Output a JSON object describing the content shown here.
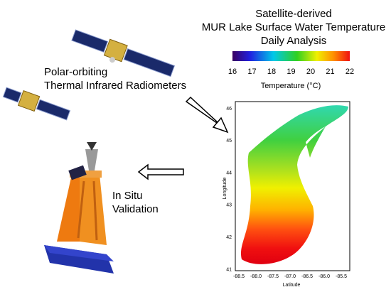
{
  "header": {
    "lines": [
      "Satellite-derived",
      "MUR Lake Surface Water Temperature",
      "Daily Analysis"
    ]
  },
  "colorbar": {
    "ticks": [
      "16",
      "17",
      "18",
      "19",
      "20",
      "21",
      "22"
    ],
    "label": "Temperature (°C)"
  },
  "satellite": {
    "lines": [
      "Polar-orbiting",
      "Thermal Infrared Radiometers"
    ]
  },
  "validation": {
    "lines": [
      "In Situ",
      "Validation"
    ]
  },
  "map": {
    "y_label": "Longitude",
    "x_label": "Latitude",
    "y_ticks": [
      "46",
      "45",
      "44",
      "43",
      "42",
      "41"
    ],
    "x_ticks": [
      "-88.5",
      "-88.0",
      "-87.5",
      "-87.0",
      "-86.5",
      "-86.0",
      "-85.5"
    ]
  }
}
